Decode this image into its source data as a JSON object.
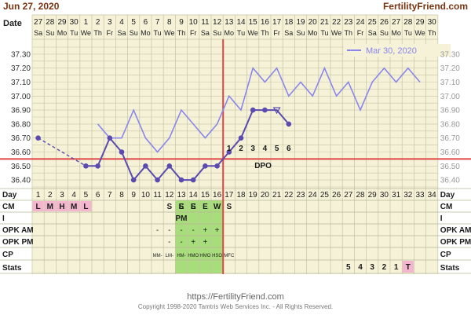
{
  "header": {
    "date": "Jun 27, 2020",
    "site": "FertilityFriend.com"
  },
  "row_labels": {
    "date": "Date",
    "day": "Day",
    "cm": "CM",
    "i": "I",
    "opk_am": "OPK AM",
    "opk_pm": "OPK PM",
    "cp": "CP",
    "stats": "Stats"
  },
  "date_numbers": [
    "27",
    "28",
    "29",
    "30",
    "1",
    "2",
    "3",
    "4",
    "5",
    "6",
    "7",
    "8",
    "9",
    "10",
    "11",
    "12",
    "13",
    "14",
    "15",
    "16",
    "17",
    "18",
    "19",
    "20",
    "21",
    "22",
    "23",
    "24",
    "25",
    "26",
    "27",
    "28",
    "29",
    "30"
  ],
  "weekdays": [
    "Sa",
    "Su",
    "Mo",
    "Tu",
    "We",
    "Th",
    "Fr",
    "Sa",
    "Su",
    "Mo",
    "Tu",
    "We",
    "Th",
    "Fr",
    "Sa",
    "Su",
    "Mo",
    "Tu",
    "We",
    "Th",
    "Fr",
    "Sa",
    "Su",
    "Mo",
    "Tu",
    "We",
    "Th",
    "Fr",
    "Sa",
    "Su",
    "Mo",
    "Tu",
    "We",
    "Th"
  ],
  "chart_data": {
    "type": "line",
    "ylim": [
      36.35,
      37.35
    ],
    "y_ticks": [
      "37.30",
      "37.20",
      "37.10",
      "37.00",
      "36.90",
      "36.80",
      "36.70",
      "36.60",
      "36.50",
      "36.40"
    ],
    "cycle_days": [
      1,
      2,
      3,
      4,
      5,
      6,
      7,
      8,
      9,
      10,
      11,
      12,
      13,
      14,
      15,
      16,
      17,
      18,
      19,
      20,
      21,
      22,
      23,
      24,
      25,
      26,
      27,
      28,
      29,
      30,
      31,
      32,
      33,
      34
    ],
    "coverline": 36.55,
    "ovulation_day": 16,
    "series": [
      {
        "name": "",
        "color": "#5b4bb0",
        "days": [
          1,
          5,
          6,
          7,
          8,
          9,
          10,
          11,
          12,
          13,
          14,
          15,
          16,
          17,
          18,
          19,
          20,
          21,
          22
        ],
        "values": [
          36.7,
          36.5,
          36.5,
          36.7,
          36.6,
          36.4,
          36.5,
          36.4,
          36.5,
          36.4,
          36.4,
          36.5,
          36.5,
          36.6,
          36.7,
          36.9,
          36.9,
          36.9,
          36.8
        ],
        "open_markers_days": [
          21
        ]
      },
      {
        "name": "Mar 30, 2020",
        "color": "#8a86ee",
        "days": [
          6,
          7,
          8,
          9,
          10,
          11,
          12,
          13,
          14,
          15,
          16,
          17,
          18,
          19,
          20,
          21,
          22,
          23,
          24,
          25,
          26,
          27,
          28,
          29,
          30,
          31,
          32,
          33
        ],
        "values": [
          36.8,
          36.7,
          36.7,
          36.9,
          36.7,
          36.6,
          36.7,
          36.9,
          36.8,
          36.7,
          36.8,
          37.0,
          36.9,
          37.2,
          37.1,
          37.2,
          37.0,
          37.1,
          37.0,
          37.2,
          37.0,
          37.1,
          36.9,
          37.1,
          37.2,
          37.1,
          37.2,
          37.1
        ]
      }
    ],
    "dpo_labels": [
      "1",
      "2",
      "3",
      "4",
      "5",
      "6"
    ],
    "dpo_text": "DPO"
  },
  "cm_row": [
    "L",
    "M",
    "H",
    "M",
    "L",
    "",
    "",
    "",
    "",
    "",
    "",
    "",
    "E",
    "E",
    "E",
    "W",
    "S",
    "",
    "",
    "",
    "",
    "",
    "",
    "",
    "",
    "",
    "",
    "",
    "",
    "",
    "",
    "",
    "",
    ""
  ],
  "cm_extra": [
    "",
    "",
    "",
    "",
    "",
    "",
    "",
    "",
    "",
    "",
    "",
    "S",
    "S",
    "S",
    "",
    "",
    "",
    "",
    "",
    "",
    "",
    "",
    "",
    "",
    "",
    "",
    "",
    "",
    "",
    "",
    "",
    "",
    "",
    ""
  ],
  "i_row": [
    "",
    "",
    "",
    "",
    "",
    "",
    "",
    "",
    "",
    "",
    "",
    "",
    "PM",
    "",
    "",
    "",
    "",
    "",
    "",
    "",
    "",
    "",
    "",
    "",
    "",
    "",
    "",
    "",
    "",
    "",
    "",
    "",
    "",
    ""
  ],
  "opk_am": [
    "",
    "",
    "",
    "",
    "",
    "",
    "",
    "",
    "",
    "",
    "-",
    "-",
    "-",
    "-",
    "+",
    "+",
    "",
    "",
    "",
    "",
    "",
    "",
    "",
    "",
    "",
    "",
    "",
    "",
    "",
    "",
    "",
    "",
    "",
    ""
  ],
  "opk_pm": [
    "",
    "",
    "",
    "",
    "",
    "",
    "",
    "",
    "",
    "",
    "",
    "-",
    "-",
    "+",
    "+",
    "",
    "",
    "",
    "",
    "",
    "",
    "",
    "",
    "",
    "",
    "",
    "",
    "",
    "",
    "",
    "",
    "",
    "",
    ""
  ],
  "cp_row": [
    "",
    "",
    "",
    "",
    "",
    "",
    "",
    "",
    "",
    "",
    "MM-",
    "LM-",
    "HM-",
    "HMO",
    "HMO",
    "HSO",
    "MFC",
    "",
    "",
    "",
    "",
    "",
    "",
    "",
    "",
    "",
    "",
    "",
    "",
    "",
    "",
    "",
    "",
    ""
  ],
  "stats_row": [
    "",
    "",
    "",
    "",
    "",
    "",
    "",
    "",
    "",
    "",
    "",
    "",
    "",
    "",
    "",
    "",
    "",
    "",
    "",
    "",
    "",
    "",
    "",
    "",
    "",
    "",
    "5",
    "4",
    "3",
    "2",
    "1",
    "T",
    "",
    ""
  ],
  "footer": {
    "url": "https://FertilityFriend.com",
    "copyright": "Copyright 1998-2020 Tamtris Web Services Inc. - All Rights Reserved."
  },
  "colors": {
    "background": "#f5f2d8",
    "grid": "#c7c4a4",
    "primary": "#5b4bb0",
    "previous": "#8a86ee",
    "coverline": "#e04545",
    "fertile": "#a7dd7a",
    "pink": "#f4b6cf",
    "header_brown": "#7a3410",
    "dark_text": "#1c1c1c"
  }
}
